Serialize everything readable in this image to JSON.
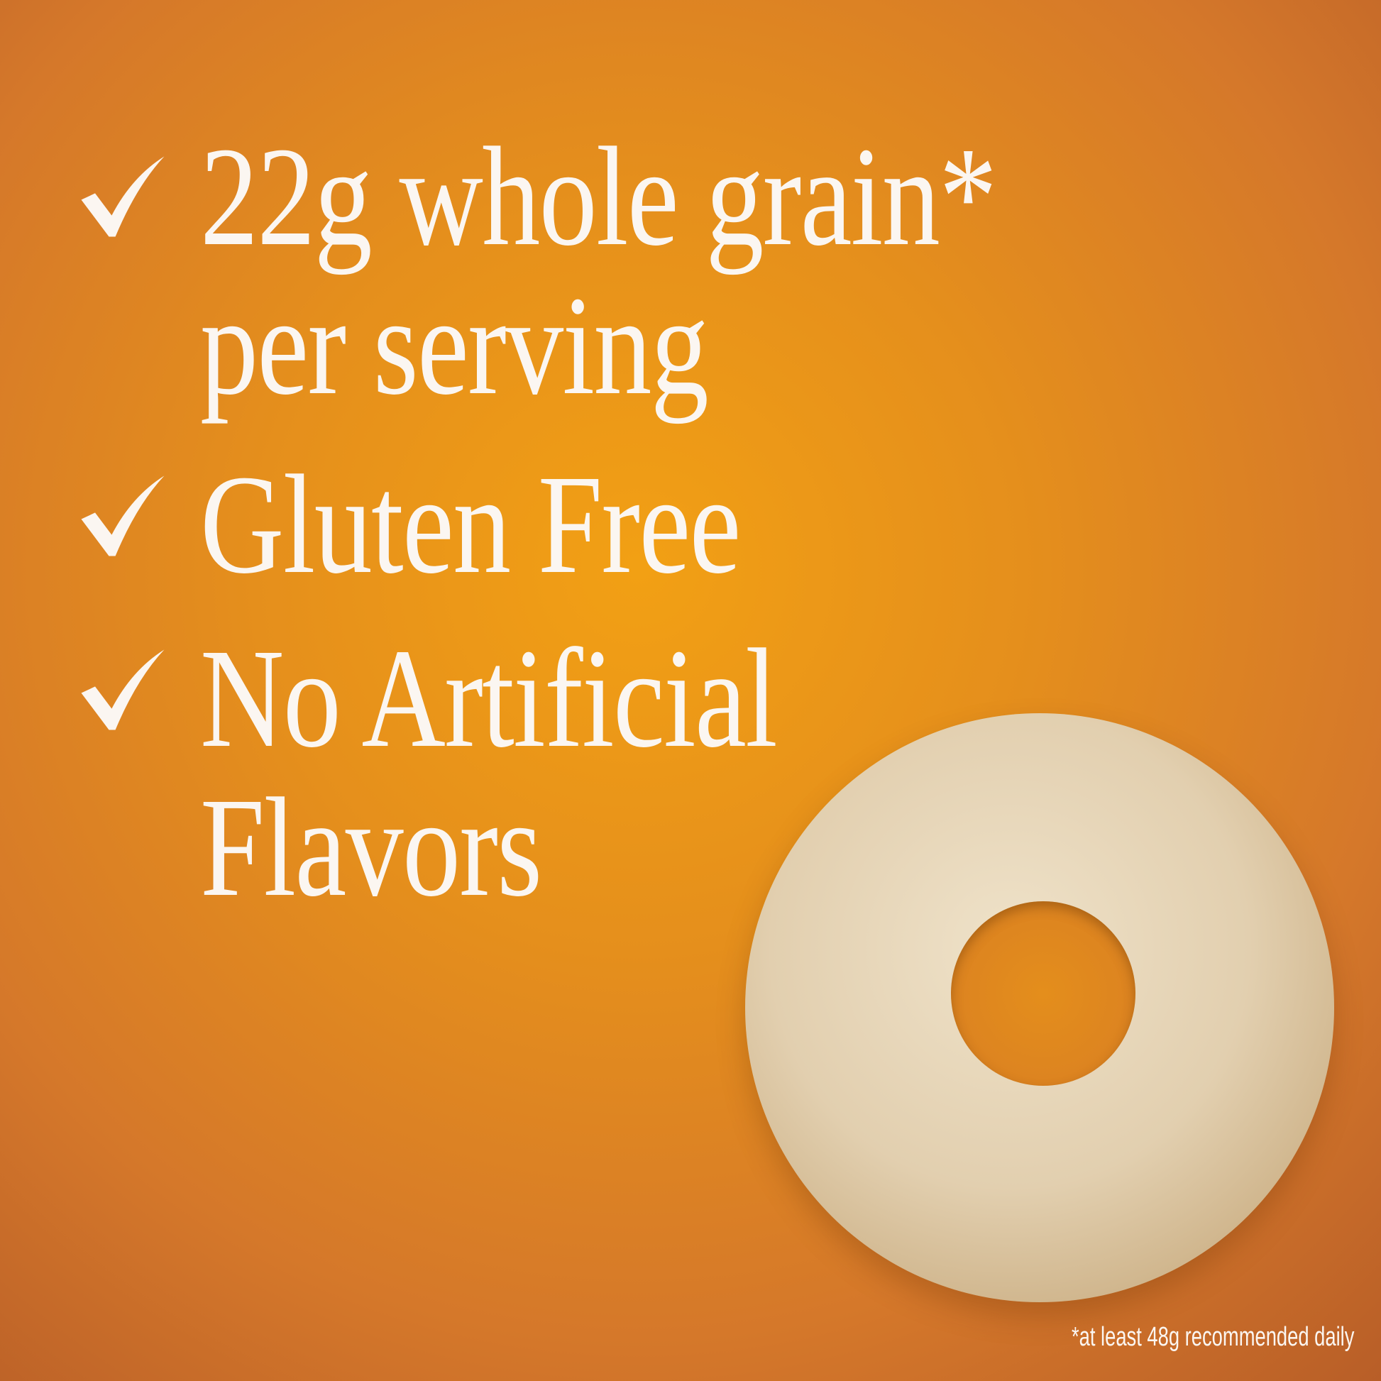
{
  "claims": [
    {
      "lines": [
        "22g whole grain*",
        "per serving"
      ],
      "icon": "checkmark-icon"
    },
    {
      "lines": [
        "Gluten Free"
      ],
      "icon": "checkmark-icon"
    },
    {
      "lines": [
        "No Artificial",
        "Flavors"
      ],
      "icon": "checkmark-icon"
    }
  ],
  "footnote": "*at least 48g recommended daily",
  "colors": {
    "background": "#e58f1c",
    "text": "#fbf6f1"
  }
}
